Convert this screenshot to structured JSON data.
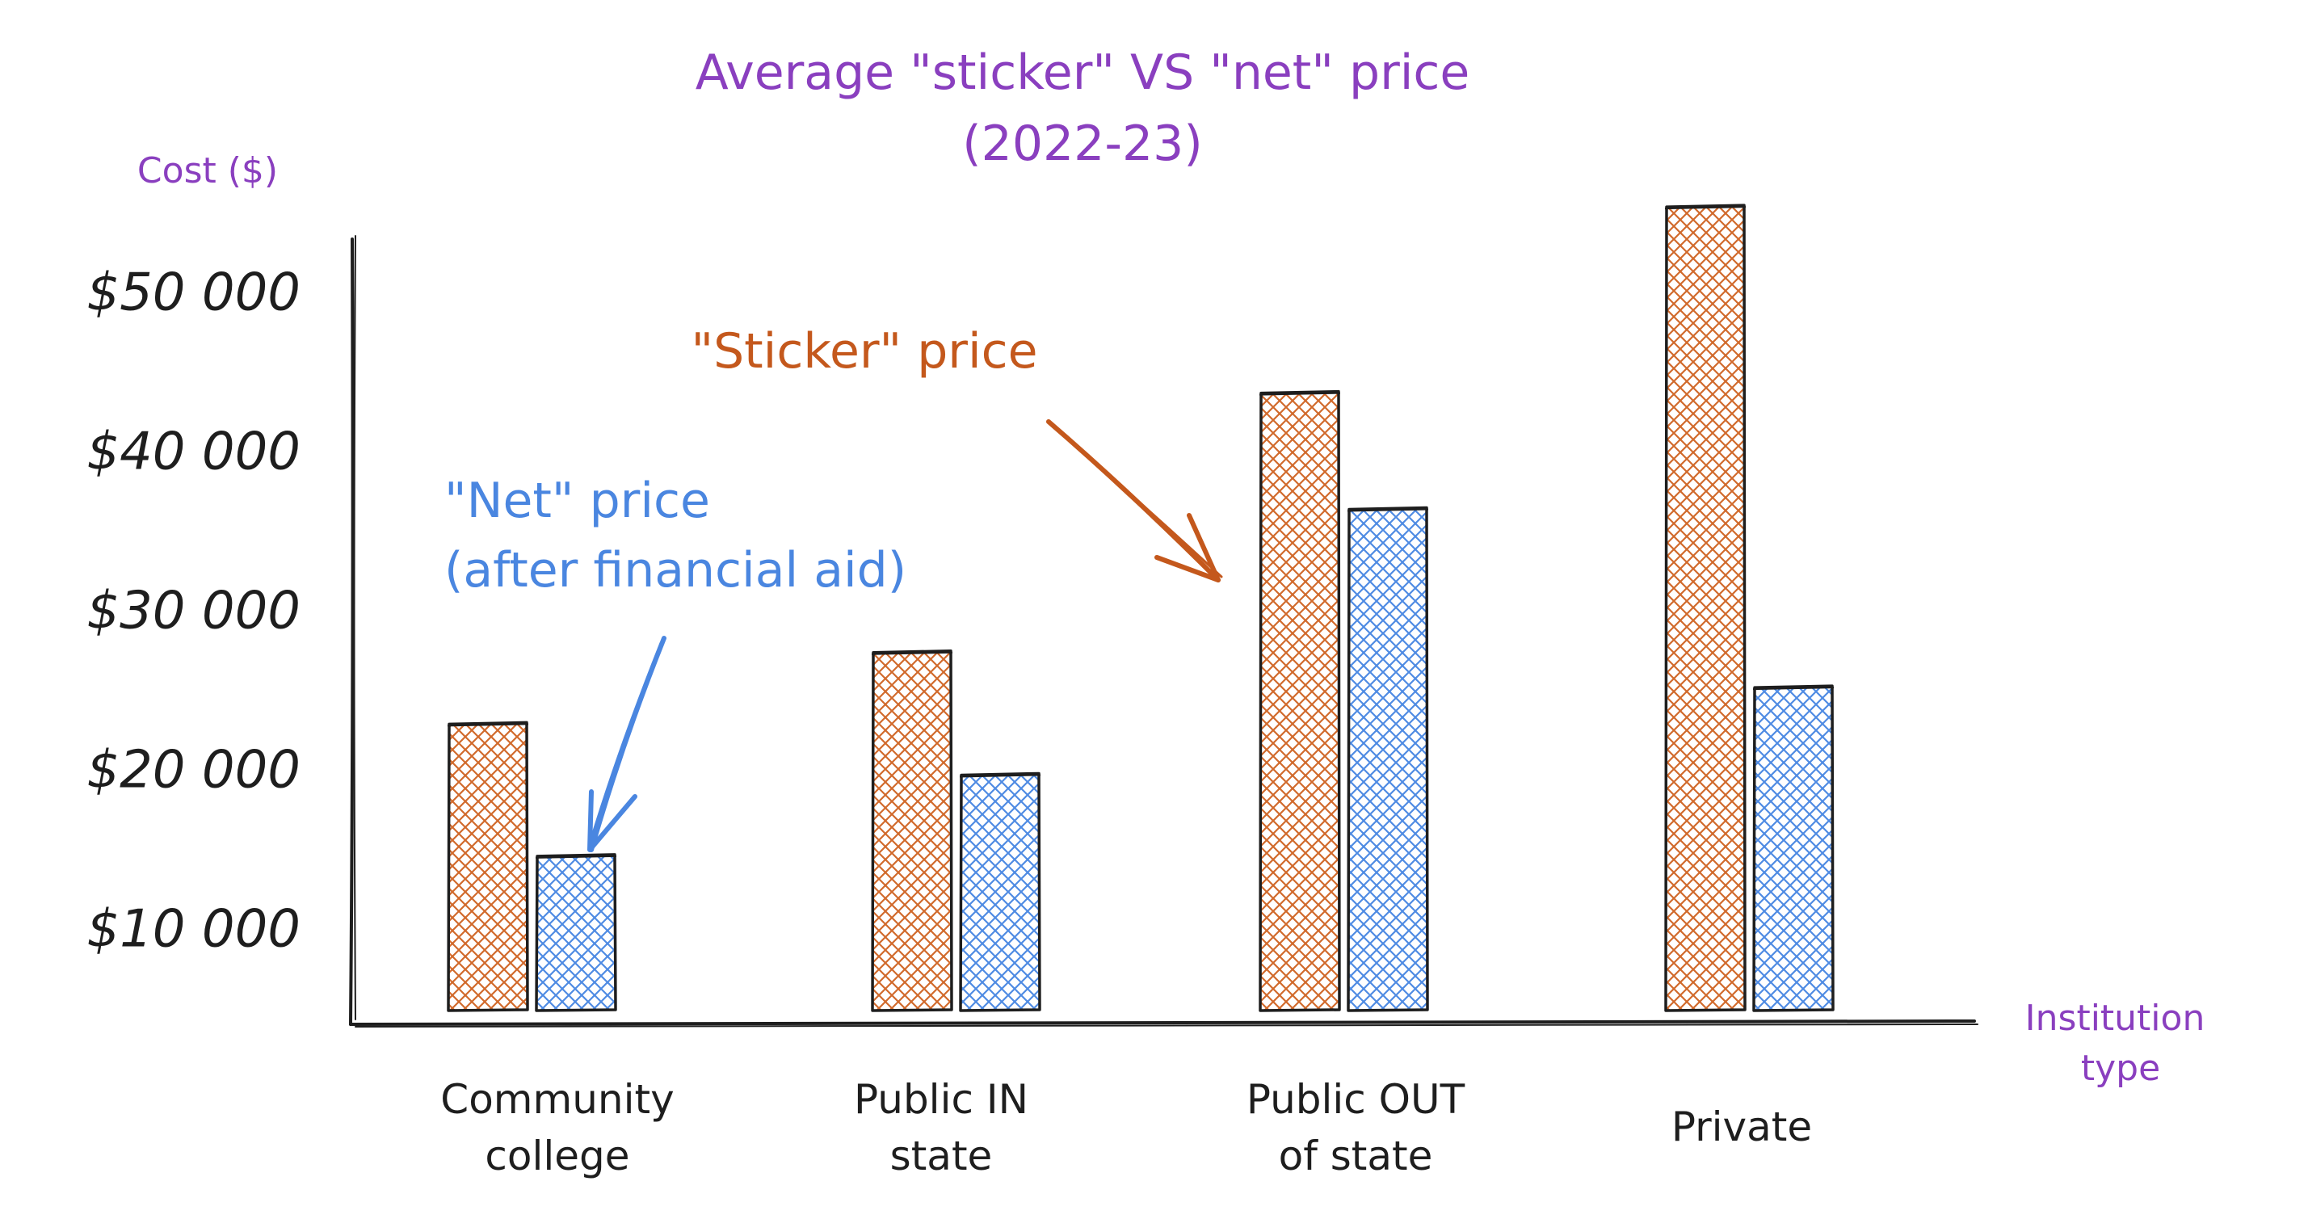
{
  "chart_data": {
    "type": "bar",
    "title": "Average \"sticker\" VS \"net\" price",
    "subtitle": "(2022-23)",
    "ylabel": "Cost ($)",
    "xlabel_lines": [
      "Institution",
      "type"
    ],
    "ylim": [
      5000,
      55000
    ],
    "yticks": [
      10000,
      20000,
      30000,
      40000,
      50000
    ],
    "ytick_labels": [
      "$10 000",
      "$20 000",
      "$30 000",
      "$40 000",
      "$50 000"
    ],
    "categories": [
      [
        "Community",
        "college"
      ],
      [
        "Public IN",
        "state"
      ],
      [
        "Public OUT",
        "of state"
      ],
      [
        "Private"
      ]
    ],
    "series": [
      {
        "key": "sticker",
        "values": [
          23000,
          27500,
          43800,
          55500
        ],
        "color": "#c4581c",
        "hatch": "#d9753a"
      },
      {
        "key": "net",
        "values": [
          14700,
          19800,
          36500,
          25300
        ],
        "color": "#4a86e0",
        "hatch": "#5b93e6"
      }
    ],
    "annotations": {
      "sticker": [
        "\"Sticker\" price"
      ],
      "net": [
        "\"Net\" price",
        "(after financial aid)"
      ]
    },
    "grid": false,
    "legend": "none"
  }
}
